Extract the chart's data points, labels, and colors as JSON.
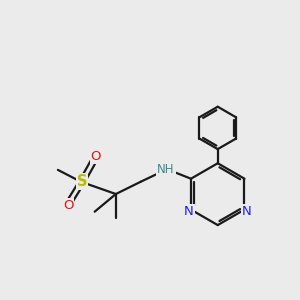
{
  "bg_color": "#ebebeb",
  "bond_color": "#1a1a1a",
  "N_color": "#2020ee",
  "O_color": "#ee1010",
  "S_color": "#bbbb00",
  "NH_color": "#3a8a8a",
  "line_width": 1.6,
  "figsize": [
    3.0,
    3.0
  ],
  "dpi": 100,
  "xlim": [
    0,
    10
  ],
  "ylim": [
    0,
    10
  ]
}
